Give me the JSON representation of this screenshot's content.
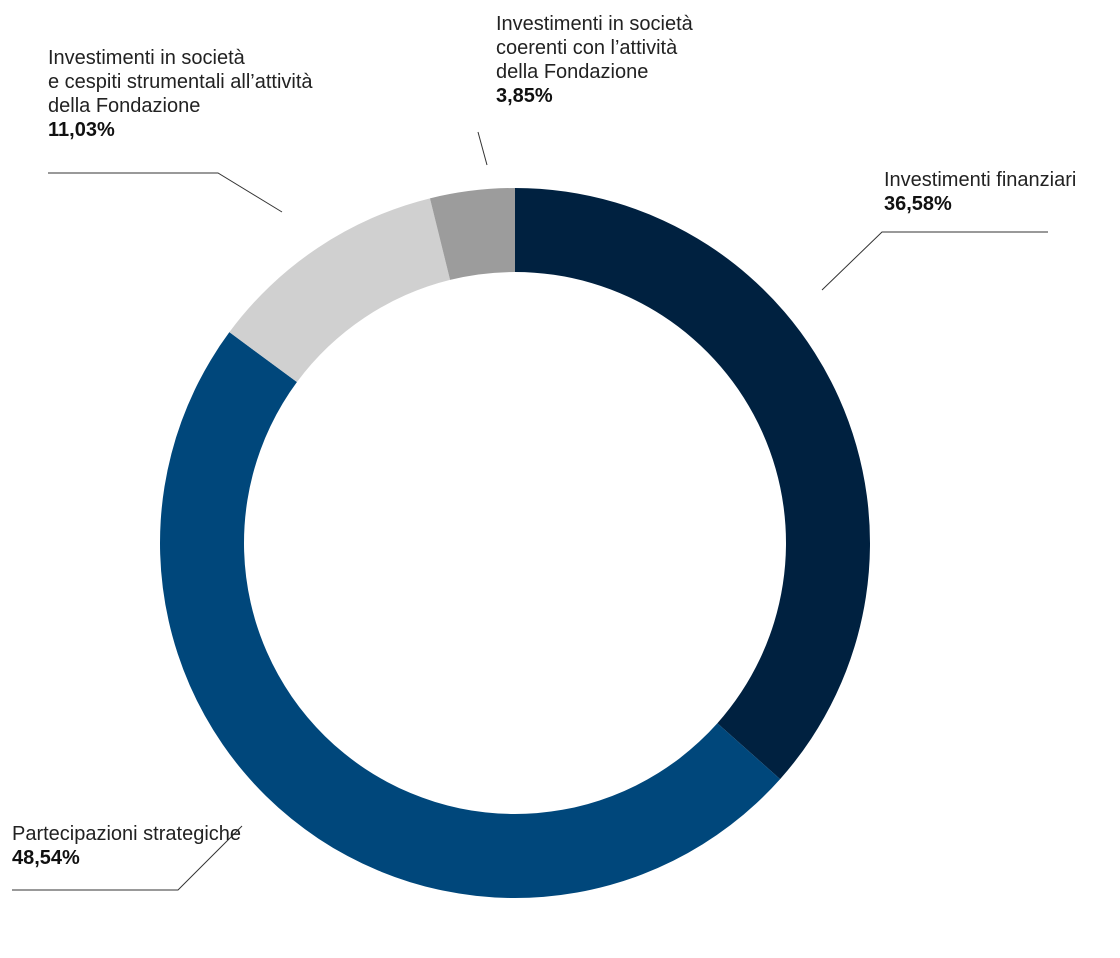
{
  "chart_data": {
    "type": "pie",
    "variant": "donut",
    "title": "",
    "slices": [
      {
        "label_lines": [
          "Investimenti finanziari"
        ],
        "value": 36.58,
        "value_label": "36,58%",
        "color": "#002140"
      },
      {
        "label_lines": [
          "Partecipazioni strategiche"
        ],
        "value": 48.54,
        "value_label": "48,54%",
        "color": "#00477b"
      },
      {
        "label_lines": [
          "Investimenti in società",
          "e cespiti strumentali all’attività",
          "della Fondazione"
        ],
        "value": 11.03,
        "value_label": "11,03%",
        "color": "#d0d0d0"
      },
      {
        "label_lines": [
          "Investimenti in società",
          "coerenti con l’attività",
          "della Fondazione"
        ],
        "value": 3.85,
        "value_label": "3,85%",
        "color": "#9c9c9c"
      }
    ],
    "leader_line_color": "#333333"
  }
}
